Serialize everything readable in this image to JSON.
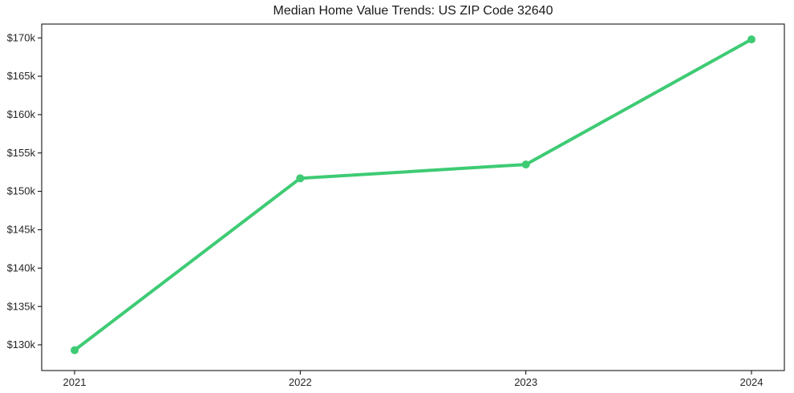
{
  "chart_data": {
    "type": "line",
    "title": "Median Home Value Trends: US ZIP Code 32640",
    "xlabel": "",
    "ylabel": "",
    "categories": [
      "2021",
      "2022",
      "2023",
      "2024"
    ],
    "x": [
      2021,
      2022,
      2023,
      2024
    ],
    "series": [
      {
        "name": "Median Home Value",
        "color": "#3ecb74",
        "values": [
          129300,
          151700,
          153500,
          169800
        ]
      }
    ],
    "y_ticks": [
      {
        "value": 130000,
        "label": "$130k"
      },
      {
        "value": 135000,
        "label": "$135k"
      },
      {
        "value": 140000,
        "label": "$140k"
      },
      {
        "value": 145000,
        "label": "$145k"
      },
      {
        "value": 150000,
        "label": "$150k"
      },
      {
        "value": 155000,
        "label": "$155k"
      },
      {
        "value": 160000,
        "label": "$160k"
      },
      {
        "value": 165000,
        "label": "$165k"
      },
      {
        "value": 170000,
        "label": "$170k"
      }
    ],
    "ylim": [
      126650,
      171800
    ],
    "grid": false,
    "legend_position": "none",
    "marker": "circle",
    "marker_radius": 5,
    "line_width": 4,
    "axis_color": "#000000",
    "tick_label_color": "#262626",
    "background_color": "#ffffff"
  }
}
